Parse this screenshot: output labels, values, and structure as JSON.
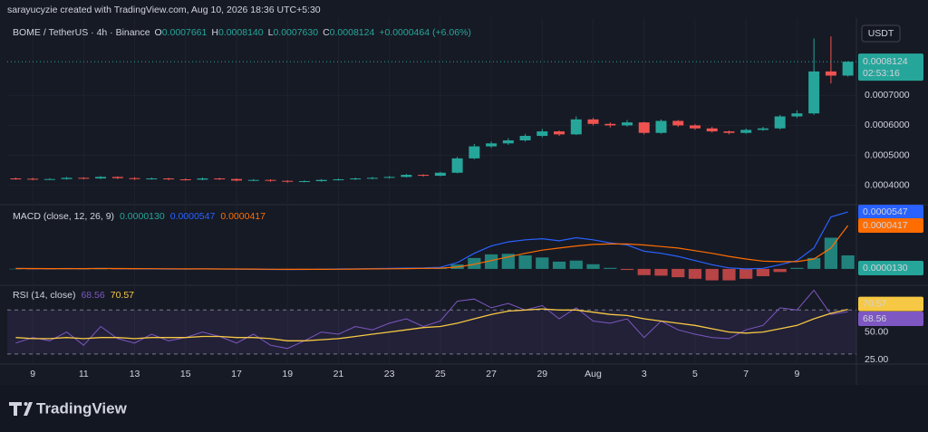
{
  "header": "sarayucyzie created with TradingView.com, Aug 10, 2026 18:36 UTC+5:30",
  "brand": "TradingView",
  "chart_data": [
    {
      "type": "candlestick",
      "title": "BOME / TetherUS · 4h · Binance",
      "currency": "USDT",
      "legend_values": [
        {
          "key": "O",
          "text": "0.0007661"
        },
        {
          "key": "H",
          "text": "0.0008140"
        },
        {
          "key": "L",
          "text": "0.0007630"
        },
        {
          "key": "C",
          "text": "0.0008124"
        }
      ],
      "change": "+0.0000464 (+6.06%)",
      "countdown": "02:53:16",
      "up_color": "#26a69a",
      "down_color": "#ef5350",
      "categories": [
        null,
        "9",
        null,
        null,
        "11",
        null,
        null,
        "13",
        null,
        null,
        "15",
        null,
        null,
        "17",
        null,
        null,
        "19",
        null,
        null,
        "21",
        null,
        null,
        "23",
        null,
        null,
        "25",
        null,
        null,
        "27",
        null,
        null,
        "29",
        null,
        null,
        "Aug",
        null,
        null,
        "3",
        null,
        null,
        "5",
        null,
        null,
        "7",
        null,
        null,
        "9",
        null,
        null,
        null
      ],
      "open": [
        0.000423,
        0.000422,
        0.00042,
        0.000421,
        0.000425,
        0.000423,
        0.000428,
        0.000424,
        0.000421,
        0.000423,
        0.00042,
        0.000419,
        0.000423,
        0.000421,
        0.000416,
        0.000418,
        0.000415,
        0.000412,
        0.000414,
        0.000418,
        0.00042,
        0.000423,
        0.000425,
        0.000428,
        0.000435,
        0.000432,
        0.000442,
        0.00049,
        0.00053,
        0.00054,
        0.00055,
        0.000565,
        0.00058,
        0.00057,
        0.00062,
        0.000605,
        0.0006,
        0.00061,
        0.000575,
        0.000615,
        0.0006,
        0.00059,
        0.00058,
        0.000575,
        0.000585,
        0.00059,
        0.00063,
        0.00064,
        0.00078,
        0.0007661
      ],
      "high": [
        0.000426,
        0.000425,
        0.000424,
        0.000428,
        0.000427,
        0.000431,
        0.00043,
        0.000427,
        0.000426,
        0.000425,
        0.000423,
        0.000426,
        0.000425,
        0.000423,
        0.000421,
        0.00042,
        0.000417,
        0.000417,
        0.000421,
        0.000423,
        0.000426,
        0.000428,
        0.000431,
        0.000438,
        0.000437,
        0.000445,
        0.000495,
        0.000538,
        0.000546,
        0.000557,
        0.000572,
        0.000588,
        0.000583,
        0.00063,
        0.000625,
        0.00061,
        0.000618,
        0.000612,
        0.00062,
        0.000618,
        0.000604,
        0.000595,
        0.000583,
        0.00059,
        0.000595,
        0.000635,
        0.00065,
        0.00089,
        0.000897,
        0.000814
      ],
      "low": [
        0.000419,
        0.000417,
        0.000418,
        0.000419,
        0.00042,
        0.000421,
        0.000421,
        0.000418,
        0.000419,
        0.000417,
        0.000416,
        0.000417,
        0.000418,
        0.000413,
        0.000414,
        0.000412,
        0.000409,
        0.00041,
        0.000412,
        0.000416,
        0.000418,
        0.00042,
        0.000423,
        0.000426,
        0.000429,
        0.00043,
        0.00044,
        0.000487,
        0.000525,
        0.000535,
        0.000546,
        0.00056,
        0.000565,
        0.000568,
        0.0006,
        0.000593,
        0.000596,
        0.00057,
        0.000572,
        0.000595,
        0.000585,
        0.000576,
        0.00057,
        0.000572,
        0.000582,
        0.000586,
        0.000625,
        0.000635,
        0.00074,
        0.000763
      ],
      "close": [
        0.000422,
        0.00042,
        0.000421,
        0.000425,
        0.000423,
        0.000428,
        0.000424,
        0.000421,
        0.000423,
        0.00042,
        0.000419,
        0.000423,
        0.000421,
        0.000416,
        0.000418,
        0.000415,
        0.000412,
        0.000414,
        0.000418,
        0.00042,
        0.000423,
        0.000425,
        0.000428,
        0.000435,
        0.000432,
        0.000442,
        0.00049,
        0.00053,
        0.00054,
        0.00055,
        0.000565,
        0.00058,
        0.00057,
        0.00062,
        0.000605,
        0.0006,
        0.00061,
        0.000575,
        0.000615,
        0.0006,
        0.00059,
        0.00058,
        0.000575,
        0.000585,
        0.00059,
        0.00063,
        0.00064,
        0.00078,
        0.0007661,
        0.0008124
      ],
      "ylim": [
        0.0003415,
        0.0009277
      ],
      "yticks": [
        {
          "value": 0.0004,
          "label": "0.0004000"
        },
        {
          "value": 0.0005,
          "label": "0.0005000"
        },
        {
          "value": 0.0006,
          "label": "0.0006000"
        },
        {
          "value": 0.0007,
          "label": "0.0007000"
        }
      ]
    },
    {
      "type": "macd",
      "title": "MACD (close, 12, 26, 9)",
      "ylim": [
        -1.4e-05,
        6e-05
      ],
      "series": [
        {
          "style": "histogram",
          "positive_color": "#26a69a",
          "negative_color": "#ef5350",
          "color": "#26a69a",
          "last_label": "0.0000130",
          "values": [
            1e-07,
            -1e-07,
            -1e-07,
            1e-07,
            0,
            1e-07,
            -1e-07,
            -2e-07,
            -2e-07,
            -2e-07,
            -2e-07,
            0,
            0,
            -2e-07,
            -2e-07,
            -2e-07,
            -2e-07,
            -1e-07,
            1e-07,
            2e-07,
            3e-07,
            3e-07,
            4e-07,
            5e-07,
            4e-07,
            8e-07,
            4.2e-06,
            1.05e-05,
            1.4e-05,
            1.45e-05,
            1.3e-05,
            1.1e-05,
            7e-06,
            8e-06,
            4.5e-06,
            1e-06,
            -1e-06,
            -6e-06,
            -6.5e-06,
            -8e-06,
            -9.5e-06,
            -1.1e-05,
            -1.1e-05,
            -9.5e-06,
            -7e-06,
            -3e-06,
            1e-06,
            1.05e-05,
            3e-05,
            1.3e-05
          ]
        },
        {
          "style": "line",
          "color": "#2962ff",
          "last_label": "0.0000547",
          "values": [
            5e-07,
            3e-07,
            2e-07,
            4e-07,
            3e-07,
            5e-07,
            3e-07,
            1e-07,
            0,
            -1e-07,
            -2e-07,
            0,
            -1e-07,
            -3e-07,
            -4e-07,
            -5e-07,
            -6e-07,
            -5e-07,
            -3e-07,
            -1e-07,
            1e-07,
            3e-07,
            5e-07,
            8e-07,
            9e-07,
            1.5e-06,
            6e-06,
            1.5e-05,
            2.2e-05,
            2.6e-05,
            2.8e-05,
            2.9e-05,
            2.7e-05,
            3e-05,
            2.8e-05,
            2.5e-05,
            2.3e-05,
            1.7e-05,
            1.5e-05,
            1.2e-05,
            8e-06,
            4e-06,
            1e-06,
            0,
            5e-07,
            4e-06,
            8e-06,
            2e-05,
            5e-05,
            5.47e-05
          ]
        },
        {
          "style": "line",
          "color": "#ff6d00",
          "last_label": "0.0000417",
          "values": [
            4e-07,
            4e-07,
            3e-07,
            3e-07,
            3e-07,
            4e-07,
            4e-07,
            3e-07,
            2e-07,
            1e-07,
            0,
            0,
            -1e-07,
            -1e-07,
            -2e-07,
            -3e-07,
            -4e-07,
            -4e-07,
            -4e-07,
            -3e-07,
            -2e-07,
            0,
            1e-07,
            3e-07,
            5e-07,
            7e-07,
            1.8e-06,
            4.5e-06,
            8e-06,
            1.15e-05,
            1.5e-05,
            1.8e-05,
            2e-05,
            2.2e-05,
            2.35e-05,
            2.4e-05,
            2.4e-05,
            2.3e-05,
            2.15e-05,
            2e-05,
            1.75e-05,
            1.5e-05,
            1.2e-05,
            9.5e-06,
            7.5e-06,
            7e-06,
            7e-06,
            9.5e-06,
            2e-05,
            4.17e-05
          ]
        }
      ]
    },
    {
      "type": "rsi",
      "title": "RSI (14, close)",
      "ylim": [
        21.7,
        90
      ],
      "bands": [
        30,
        70
      ],
      "band_color": "#7e57c2",
      "yticks": [
        {
          "value": 50,
          "label": "50.00"
        },
        {
          "value": 25,
          "label": "25.00"
        }
      ],
      "series": [
        {
          "color": "#7e57c2",
          "values": [
            40,
            45,
            42,
            50,
            38,
            55,
            44,
            40,
            48,
            42,
            45,
            50,
            46,
            40,
            48,
            38,
            35,
            42,
            50,
            48,
            55,
            52,
            58,
            62,
            55,
            60,
            78,
            80,
            72,
            76,
            70,
            74,
            62,
            72,
            60,
            58,
            62,
            45,
            60,
            52,
            48,
            45,
            44,
            52,
            56,
            72,
            70,
            88,
            66,
            68.56
          ]
        },
        {
          "color": "#f7c843",
          "values": [
            45,
            44,
            44,
            45,
            44,
            45,
            45,
            44,
            45,
            45,
            45,
            46,
            46,
            45,
            45,
            44,
            42,
            42,
            43,
            44,
            46,
            48,
            50,
            52,
            54,
            55,
            58,
            62,
            66,
            69,
            70,
            71,
            70,
            70,
            68,
            66,
            65,
            62,
            60,
            58,
            56,
            53,
            50,
            49,
            50,
            53,
            56,
            62,
            67,
            70.57
          ]
        }
      ]
    }
  ]
}
